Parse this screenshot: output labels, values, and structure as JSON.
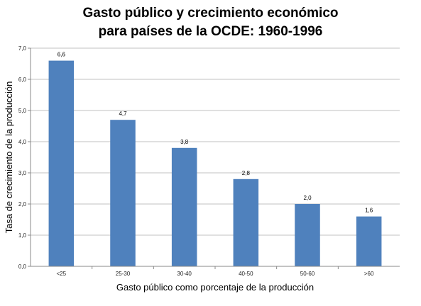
{
  "chart_data": {
    "type": "bar",
    "title": [
      "Gasto público y crecimiento económico",
      "para países de la OCDE: 1960-1996"
    ],
    "xlabel": "Gasto público como porcentaje de la producción",
    "ylabel": "Tasa de crecimiento de la producción",
    "categories": [
      "<25",
      "25-30",
      "30-40",
      "40-50",
      "50-60",
      ">60"
    ],
    "values": [
      6.6,
      4.7,
      3.8,
      2.8,
      2.0,
      1.6
    ],
    "data_labels": [
      "6,6",
      "4,7",
      "3,8",
      "2,8",
      "2,0",
      "1,6"
    ],
    "ylim": [
      0,
      7
    ],
    "yticks": [
      0,
      1,
      2,
      3,
      4,
      5,
      6,
      7
    ],
    "ytick_labels": [
      "0,0",
      "1,0",
      "2,0",
      "3,0",
      "4,0",
      "5,0",
      "6,0",
      "7,0"
    ],
    "grid": true,
    "legend": "none",
    "bar_color": "#4f81bd",
    "grid_color": "#c0c0c0"
  }
}
